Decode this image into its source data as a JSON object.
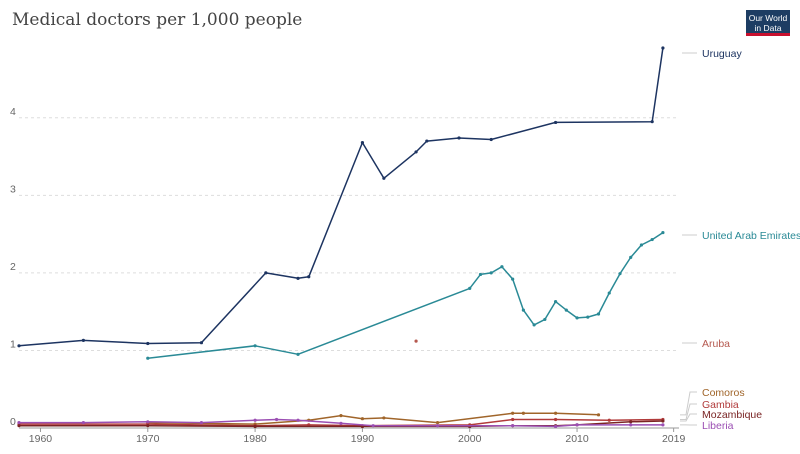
{
  "title": "Medical doctors per 1,000 people",
  "logo": {
    "line1": "Our World",
    "line2": "in Data"
  },
  "chart_data": {
    "type": "line",
    "title": "Medical doctors per 1,000 people",
    "xlabel": "",
    "ylabel": "",
    "xlim": [
      1958,
      2019.5
    ],
    "ylim": [
      0,
      5
    ],
    "x_ticks": [
      "1960",
      "1970",
      "1980",
      "1990",
      "2000",
      "2010",
      "2019"
    ],
    "y_ticks": [
      "0",
      "1",
      "2",
      "3",
      "4"
    ],
    "grid": "horizontal dashed",
    "legend": "line end labels on the right",
    "series": [
      {
        "name": "Uruguay",
        "color": "#1d3461",
        "points": [
          [
            1958,
            1.06
          ],
          [
            1964,
            1.13
          ],
          [
            1970,
            1.09
          ],
          [
            1975,
            1.1
          ],
          [
            1981,
            2.0
          ],
          [
            1984,
            1.93
          ],
          [
            1985,
            1.95
          ],
          [
            1990,
            3.68
          ],
          [
            1992,
            3.22
          ],
          [
            1995,
            3.56
          ],
          [
            1996,
            3.7
          ],
          [
            1999,
            3.74
          ],
          [
            2002,
            3.72
          ],
          [
            2008,
            3.94
          ],
          [
            2017,
            3.95
          ],
          [
            2018,
            4.9
          ]
        ]
      },
      {
        "name": "United Arab Emirates",
        "color": "#2a8a96",
        "points": [
          [
            1970,
            0.9
          ],
          [
            1980,
            1.06
          ],
          [
            1984,
            0.95
          ],
          [
            2000,
            1.8
          ],
          [
            2001,
            1.98
          ],
          [
            2002,
            2.0
          ],
          [
            2003,
            2.08
          ],
          [
            2004,
            1.92
          ],
          [
            2005,
            1.52
          ],
          [
            2006,
            1.33
          ],
          [
            2007,
            1.4
          ],
          [
            2008,
            1.63
          ],
          [
            2009,
            1.52
          ],
          [
            2010,
            1.42
          ],
          [
            2011,
            1.43
          ],
          [
            2012,
            1.47
          ],
          [
            2013,
            1.74
          ],
          [
            2014,
            1.99
          ],
          [
            2015,
            2.2
          ],
          [
            2016,
            2.36
          ],
          [
            2017,
            2.43
          ],
          [
            2018,
            2.52
          ]
        ]
      },
      {
        "name": "Aruba",
        "color": "#b5594f",
        "points": [
          [
            1995,
            1.12
          ]
        ]
      },
      {
        "name": "Comoros",
        "color": "#a0652a",
        "points": [
          [
            1970,
            0.07
          ],
          [
            1980,
            0.05
          ],
          [
            1985,
            0.1
          ],
          [
            1988,
            0.16
          ],
          [
            1990,
            0.12
          ],
          [
            1992,
            0.13
          ],
          [
            1997,
            0.07
          ],
          [
            2004,
            0.19
          ],
          [
            2005,
            0.19
          ],
          [
            2008,
            0.19
          ],
          [
            2012,
            0.17
          ]
        ]
      },
      {
        "name": "Gambia",
        "color": "#b13a3a",
        "points": [
          [
            1958,
            0.05
          ],
          [
            1970,
            0.05
          ],
          [
            1980,
            0.03
          ],
          [
            1985,
            0.04
          ],
          [
            1990,
            0.03
          ],
          [
            2000,
            0.04
          ],
          [
            2004,
            0.11
          ],
          [
            2008,
            0.11
          ],
          [
            2013,
            0.1
          ],
          [
            2018,
            0.11
          ]
        ]
      },
      {
        "name": "Mozambique",
        "color": "#7a2424",
        "points": [
          [
            1958,
            0.03
          ],
          [
            1970,
            0.03
          ],
          [
            1980,
            0.02
          ],
          [
            1990,
            0.02
          ],
          [
            2000,
            0.02
          ],
          [
            2004,
            0.03
          ],
          [
            2008,
            0.03
          ],
          [
            2010,
            0.04
          ],
          [
            2015,
            0.08
          ],
          [
            2018,
            0.09
          ]
        ]
      },
      {
        "name": "Liberia",
        "color": "#9b4fb3",
        "points": [
          [
            1958,
            0.07
          ],
          [
            1964,
            0.07
          ],
          [
            1970,
            0.08
          ],
          [
            1975,
            0.07
          ],
          [
            1980,
            0.1
          ],
          [
            1982,
            0.11
          ],
          [
            1984,
            0.1
          ],
          [
            1988,
            0.06
          ],
          [
            1991,
            0.03
          ],
          [
            1997,
            0.03
          ],
          [
            2004,
            0.03
          ],
          [
            2008,
            0.02
          ],
          [
            2010,
            0.04
          ],
          [
            2015,
            0.04
          ],
          [
            2018,
            0.04
          ]
        ]
      }
    ]
  }
}
